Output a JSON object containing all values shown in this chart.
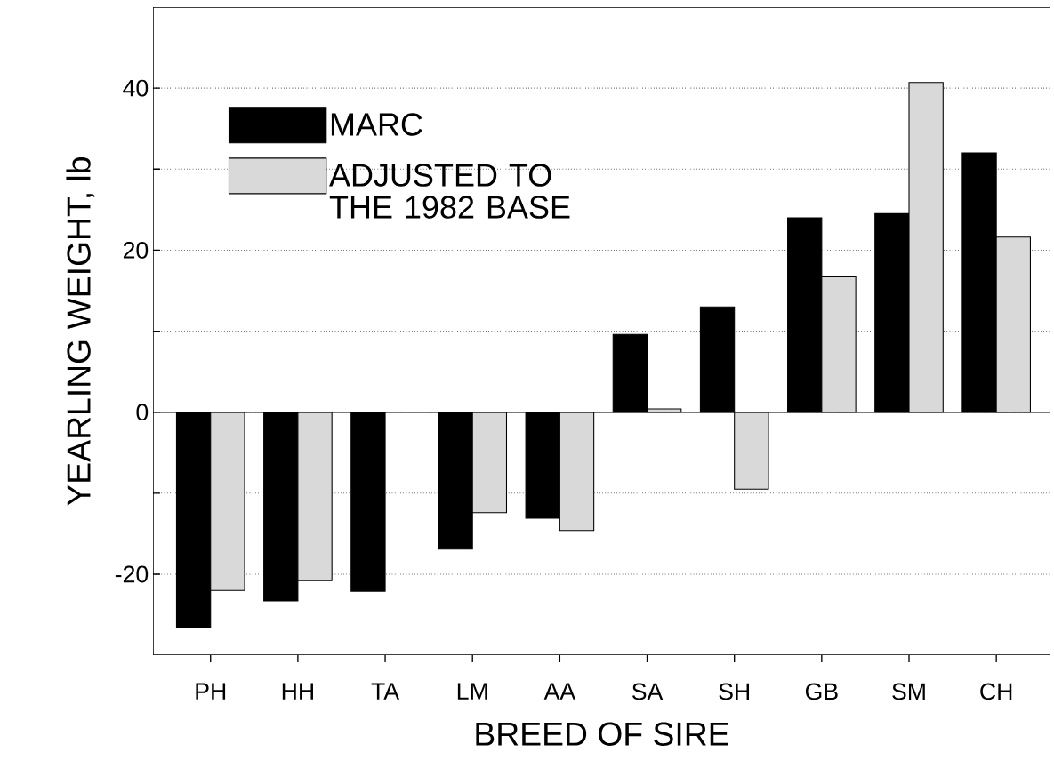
{
  "chart_data": {
    "type": "bar",
    "xlabel": "BREED OF SIRE",
    "ylabel": "YEARLING WEIGHT, lb",
    "categories": [
      "PH",
      "HH",
      "TA",
      "LM",
      "AA",
      "SA",
      "SH",
      "GB",
      "SM",
      "CH"
    ],
    "series": [
      {
        "name": "MARC",
        "color": "#000000",
        "values": [
          -26.6,
          -23.3,
          -22.1,
          -16.9,
          -13.1,
          9.6,
          13.0,
          24.0,
          24.5,
          32.0
        ]
      },
      {
        "name": "ADJUSTED TO THE 1982 BASE",
        "color": "#d9d9d9",
        "values": [
          -22.0,
          -20.8,
          null,
          -12.4,
          -14.6,
          0.4,
          -9.5,
          16.7,
          40.7,
          21.6
        ]
      }
    ],
    "ylim": [
      -30,
      50
    ],
    "yticks": [
      -20,
      {
        "value": -10,
        "label": null
      },
      0,
      {
        "value": 10,
        "label": null
      },
      20,
      {
        "value": 30,
        "label": null
      },
      40
    ],
    "ref_lines": [
      {
        "axis": "y",
        "value": 0,
        "color": "#000000"
      }
    ],
    "grid": "y",
    "legend": "top left"
  }
}
